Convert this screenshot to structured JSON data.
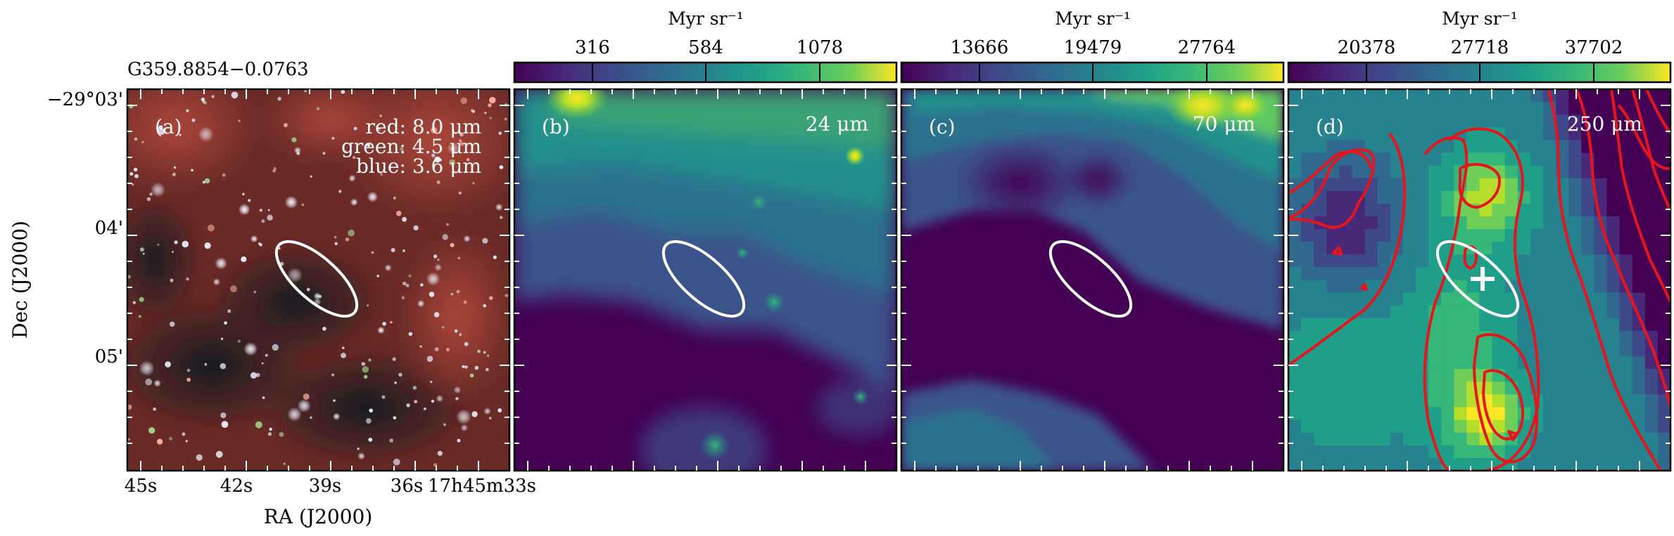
{
  "figure": {
    "source_name": "G359.8854−0.0763",
    "x_axis_label": "RA (J2000)",
    "y_axis_label": "Dec (J2000)",
    "ra_ticks": [
      "45s",
      "42s",
      "39s",
      "36s",
      "17h45m33s"
    ],
    "dec_ticks": [
      "−29°03'",
      "04'",
      "05'"
    ]
  },
  "panels": [
    {
      "id": "a",
      "label": "(a)",
      "legend": [
        "red: 8.0 μm",
        "green: 4.5 μm",
        "blue: 3.6 μm"
      ],
      "colorbar": null
    },
    {
      "id": "b",
      "label": "(b)",
      "band": "24 μm",
      "colorbar": {
        "unit": "Myr sr⁻¹",
        "ticks": [
          "316",
          "584",
          "1078"
        ]
      }
    },
    {
      "id": "c",
      "label": "(c)",
      "band": "70 μm",
      "colorbar": {
        "unit": "Myr sr⁻¹",
        "ticks": [
          "13666",
          "19479",
          "27764"
        ]
      }
    },
    {
      "id": "d",
      "label": "(d)",
      "band": "250 μm",
      "colorbar": {
        "unit": "Myr sr⁻¹",
        "ticks": [
          "20378",
          "27718",
          "37702"
        ]
      }
    }
  ],
  "colors": {
    "ellipse": "#ffffff",
    "contours": "#e8141c",
    "viridis_low": "#440154",
    "viridis_high": "#fde725"
  }
}
